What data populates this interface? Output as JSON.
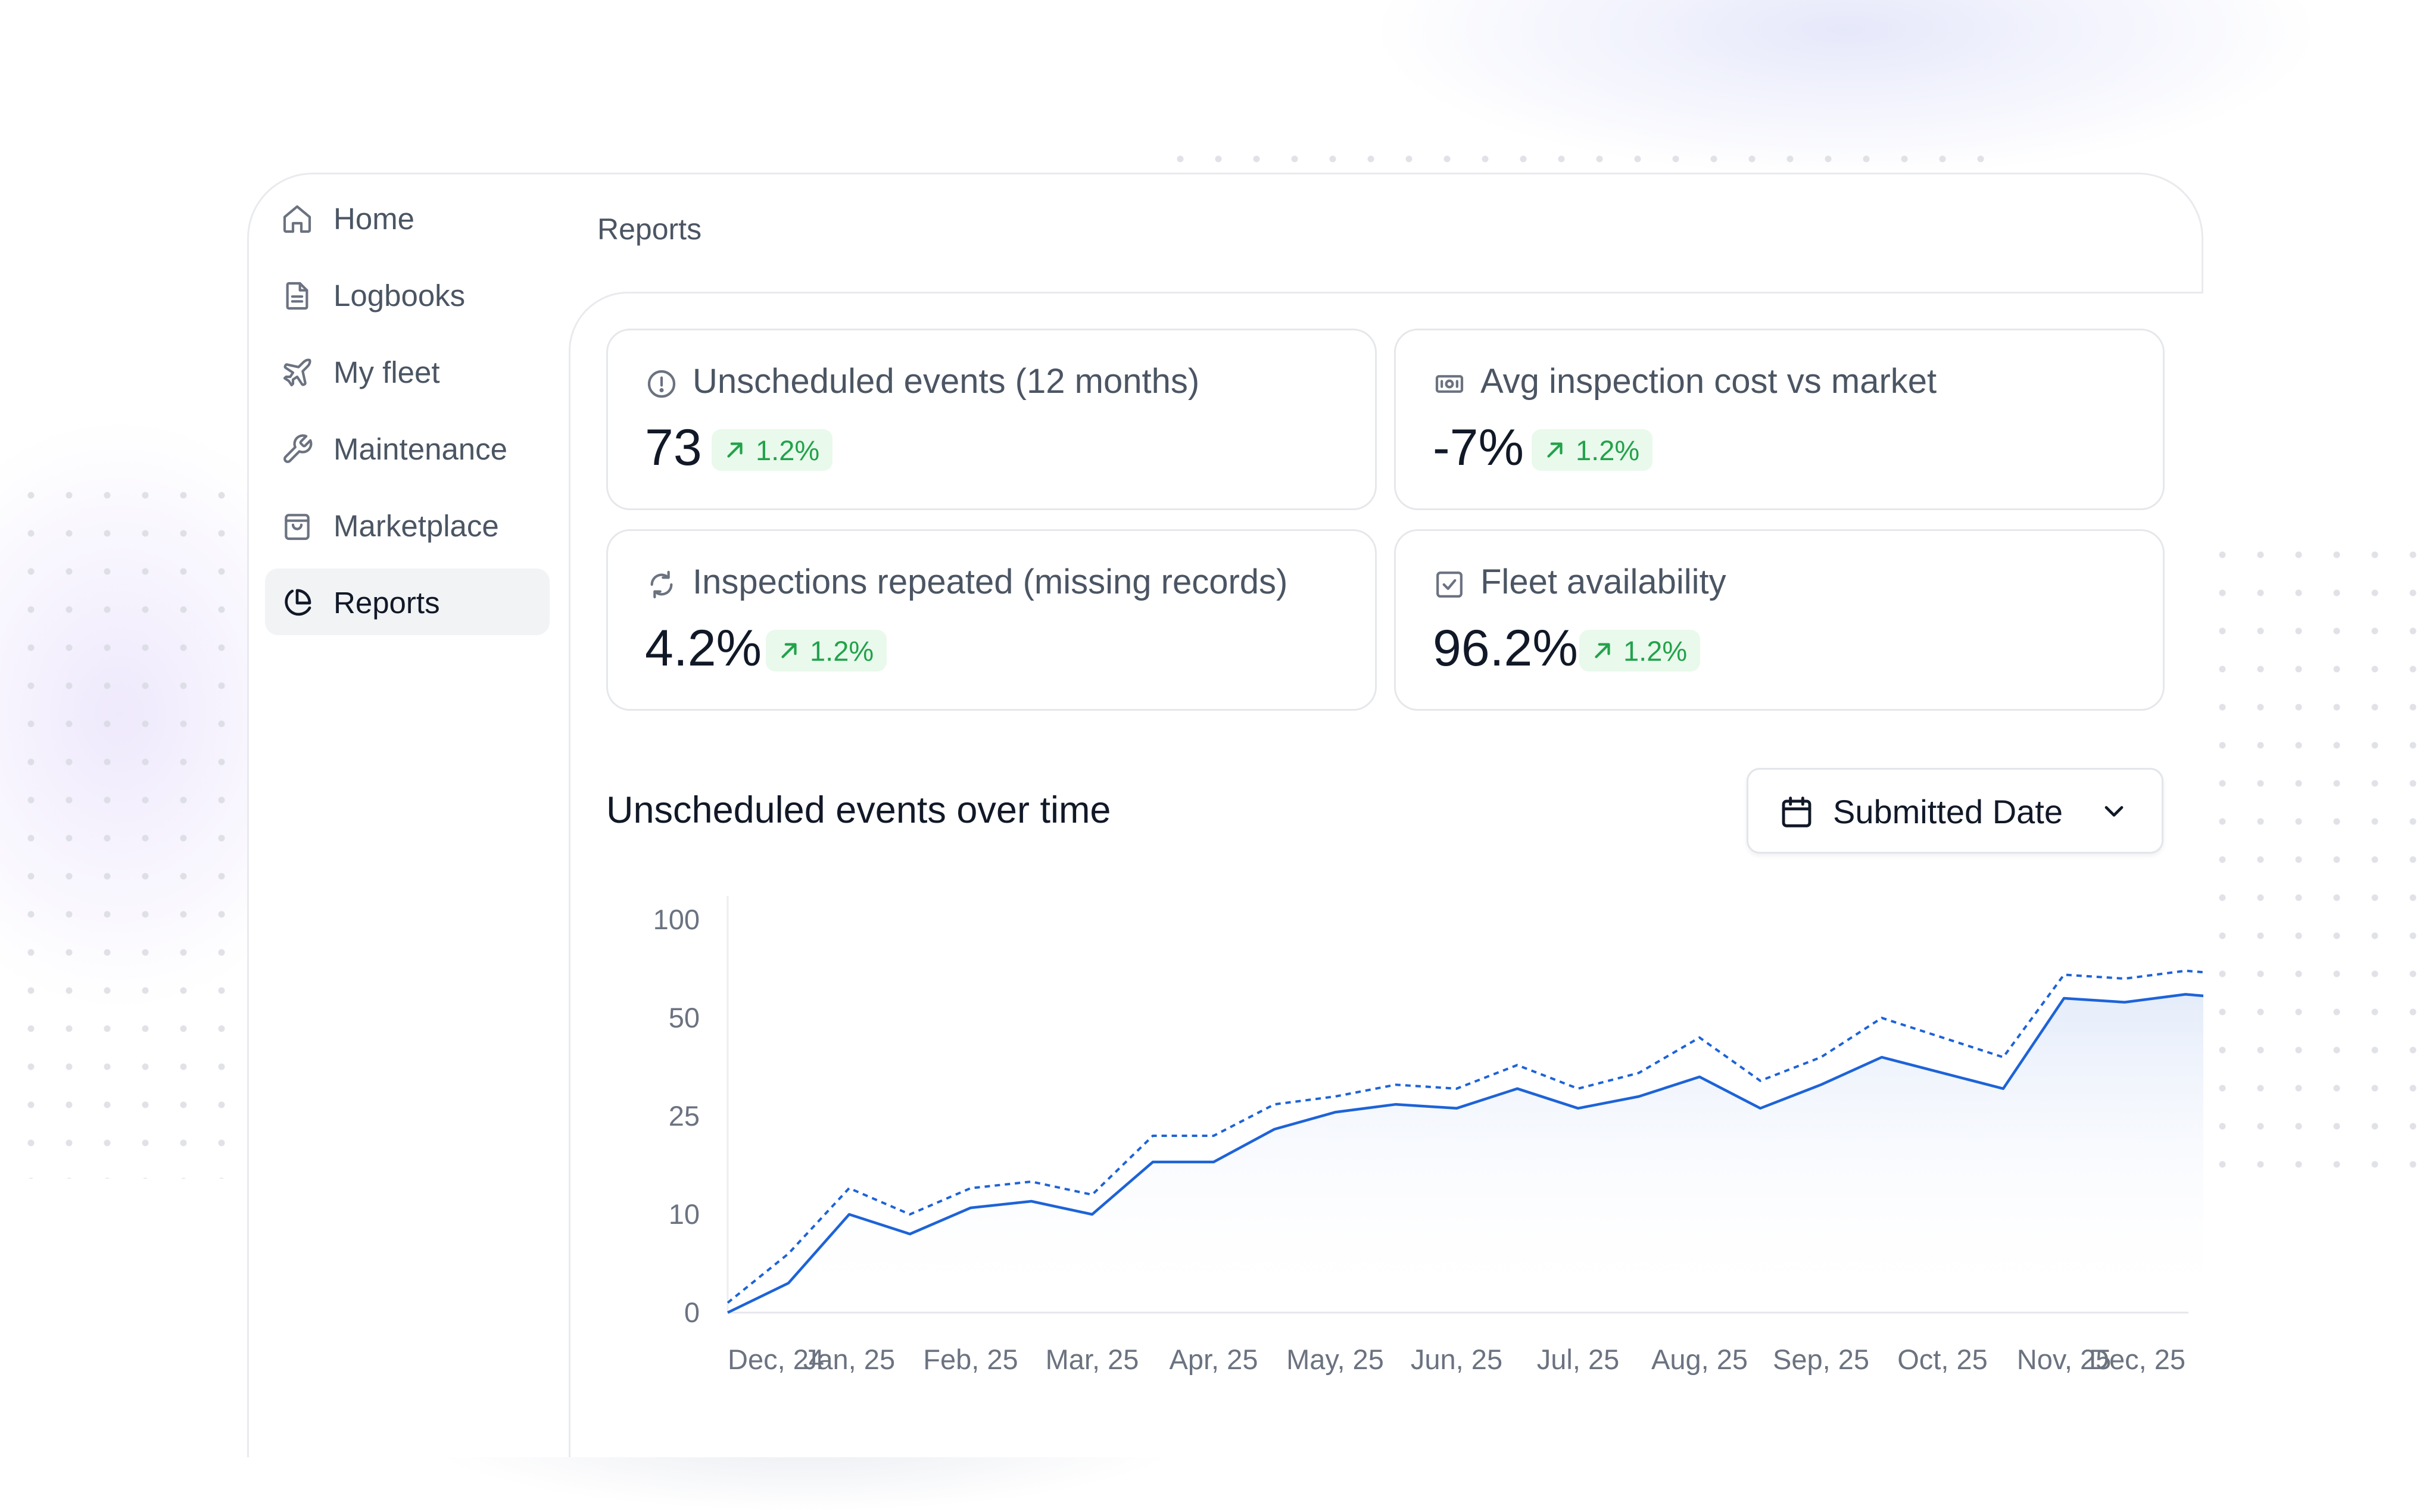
{
  "sidebar": {
    "items": [
      {
        "label": "Home",
        "icon": "home-icon",
        "active": false
      },
      {
        "label": "Logbooks",
        "icon": "document-icon",
        "active": false
      },
      {
        "label": "My fleet",
        "icon": "plane-icon",
        "active": false
      },
      {
        "label": "Maintenance",
        "icon": "wrench-icon",
        "active": false
      },
      {
        "label": "Marketplace",
        "icon": "shopping-bag-icon",
        "active": false
      },
      {
        "label": "Reports",
        "icon": "pie-chart-icon",
        "active": true
      }
    ]
  },
  "header": {
    "breadcrumb": "Reports"
  },
  "stats": [
    {
      "title": "Unscheduled events (12 months)",
      "value": "73",
      "change": "1.2%",
      "icon": "alert-circle-icon"
    },
    {
      "title": "Avg inspection cost vs market",
      "value": "-7%",
      "change": "1.2%",
      "icon": "banknote-icon"
    },
    {
      "title": "Inspections repeated (missing records)",
      "value": "4.2%",
      "change": "1.2%",
      "icon": "refresh-icon"
    },
    {
      "title": "Fleet availability",
      "value": "96.2%",
      "change": "1.2%",
      "icon": "check-square-icon"
    }
  ],
  "chart_section": {
    "title": "Unscheduled events over time",
    "date_filter": {
      "label": "Submitted Date",
      "icon": "calendar-icon"
    }
  },
  "colors": {
    "accent": "#1d63d8",
    "positive_bg": "#e9f9ec",
    "positive_text": "#22a24a"
  },
  "chart_data": {
    "type": "area",
    "y_ticks": [
      "100",
      "50",
      "25",
      "10",
      "0"
    ],
    "y_scale": "non-linear",
    "categories": [
      "Dec, 24",
      "Jan, 25",
      "Feb, 25",
      "Mar, 25",
      "Apr, 25",
      "May, 25",
      "Jun, 25",
      "Jul, 25",
      "Aug, 25",
      "Sep, 25",
      "Oct, 25",
      "Nov, 25",
      "Dec, 25"
    ],
    "x": [
      0,
      0.5,
      1,
      1.5,
      2,
      2.5,
      3,
      3.5,
      4,
      4.5,
      5,
      5.5,
      6,
      6.5,
      7,
      7.5,
      8,
      8.5,
      9,
      9.5,
      10,
      10.5,
      11,
      11.5,
      12,
      12.4
    ],
    "series": [
      {
        "style": "solid",
        "values": [
          0,
          3,
          10,
          8,
          11,
          12,
          10,
          18,
          18,
          23,
          26,
          28,
          27,
          32,
          27,
          30,
          35,
          27,
          33,
          40,
          36,
          32,
          60,
          58,
          62,
          60
        ]
      },
      {
        "style": "dashed",
        "values": [
          1,
          6,
          14,
          10,
          14,
          15,
          13,
          22,
          22,
          28,
          30,
          33,
          32,
          38,
          32,
          36,
          45,
          34,
          40,
          50,
          45,
          40,
          72,
          70,
          74,
          72
        ]
      }
    ],
    "grid": false,
    "legend": "none"
  }
}
